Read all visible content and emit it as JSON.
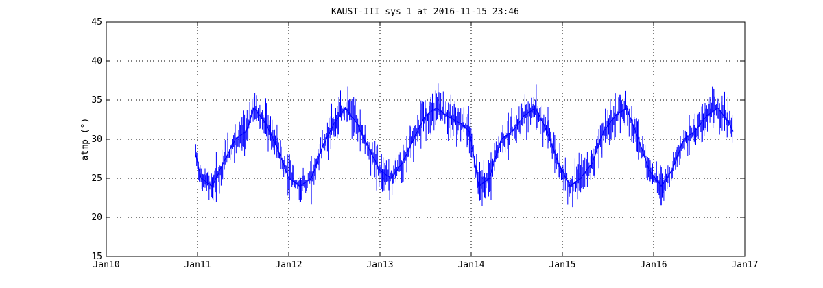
{
  "chart_data": {
    "type": "line",
    "title": "KAUST-III sys 1 at 2016-11-15 23:46",
    "xlabel": "",
    "ylabel": "atmp (°)",
    "xlim": [
      "Jan10",
      "Jan17"
    ],
    "ylim": [
      15,
      45
    ],
    "x_ticks": [
      "Jan10",
      "Jan11",
      "Jan12",
      "Jan13",
      "Jan14",
      "Jan15",
      "Jan16",
      "Jan17"
    ],
    "y_ticks": [
      15,
      20,
      25,
      30,
      35,
      40,
      45
    ],
    "grid": true,
    "line_color": "#0000ff",
    "series": [
      {
        "name": "",
        "x": [
          "2010-12-25",
          "2011-01-15",
          "2011-03-01",
          "2011-04-15",
          "2011-06-01",
          "2011-07-15",
          "2011-08-15",
          "2011-10-01",
          "2011-11-15",
          "2012-01-01",
          "2012-02-15",
          "2012-04-01",
          "2012-05-15",
          "2012-07-01",
          "2012-08-15",
          "2012-10-01",
          "2012-11-15",
          "2013-01-01",
          "2013-02-15",
          "2013-04-01",
          "2013-05-15",
          "2013-07-01",
          "2013-08-15",
          "2013-09-25",
          "2013-11-20",
          "2013-12-25",
          "2014-02-01",
          "2014-03-15",
          "2014-05-01",
          "2014-06-15",
          "2014-08-01",
          "2014-09-15",
          "2014-11-01",
          "2014-12-15",
          "2015-02-01",
          "2015-03-15",
          "2015-05-01",
          "2015-06-15",
          "2015-08-01",
          "2015-09-15",
          "2015-11-01",
          "2015-12-15",
          "2016-02-01",
          "2016-03-15",
          "2016-05-01",
          "2016-06-15",
          "2016-08-01",
          "2016-09-15",
          "2016-11-01",
          "2016-11-15"
        ],
        "y": [
          28,
          25,
          24,
          27,
          30,
          31,
          34,
          32,
          29,
          25,
          24,
          25,
          29,
          32,
          34,
          32,
          29,
          26,
          25,
          27,
          30,
          33,
          34,
          33,
          32,
          31,
          24,
          25,
          30,
          31,
          33,
          34,
          31,
          27,
          24,
          25,
          27,
          31,
          33,
          34,
          30,
          26,
          24,
          26,
          30,
          31,
          33,
          34,
          32,
          31
        ]
      }
    ]
  }
}
